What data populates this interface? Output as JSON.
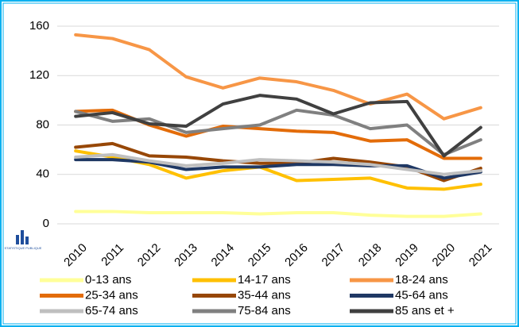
{
  "chart_data": {
    "type": "line",
    "logo_text": "STATISTIQUE PUBLIQUE",
    "x": [
      "2010",
      "2011",
      "2012",
      "2013",
      "2014",
      "2015",
      "2016",
      "2017",
      "2018",
      "2019",
      "2020",
      "2021"
    ],
    "ylim": [
      0,
      160
    ],
    "yticks": [
      0,
      40,
      80,
      120,
      160
    ],
    "grid": true,
    "series": [
      {
        "name": "0-13 ans",
        "color": "#ffff99",
        "values": [
          10,
          10,
          9,
          9,
          9,
          8,
          9,
          9,
          7,
          6,
          6,
          8
        ]
      },
      {
        "name": "14-17 ans",
        "color": "#ffc000",
        "values": [
          59,
          54,
          48,
          37,
          43,
          46,
          35,
          36,
          37,
          29,
          28,
          32
        ]
      },
      {
        "name": "18-24 ans",
        "color": "#f79646",
        "values": [
          153,
          150,
          141,
          119,
          110,
          118,
          115,
          108,
          97,
          105,
          85,
          94
        ]
      },
      {
        "name": "25-34 ans",
        "color": "#e36c09",
        "values": [
          91,
          92,
          80,
          71,
          79,
          77,
          75,
          74,
          67,
          68,
          53,
          53
        ]
      },
      {
        "name": "35-44 ans",
        "color": "#974706",
        "values": [
          62,
          65,
          55,
          54,
          51,
          49,
          49,
          53,
          50,
          46,
          35,
          45
        ]
      },
      {
        "name": "45-64 ans",
        "color": "#1f3864",
        "values": [
          52,
          52,
          50,
          44,
          46,
          46,
          48,
          48,
          47,
          47,
          37,
          42
        ]
      },
      {
        "name": "65-74 ans",
        "color": "#bfbfbf",
        "values": [
          54,
          56,
          51,
          47,
          49,
          52,
          51,
          50,
          48,
          44,
          40,
          43
        ]
      },
      {
        "name": "75-84 ans",
        "color": "#808080",
        "values": [
          91,
          83,
          85,
          74,
          77,
          80,
          92,
          88,
          77,
          80,
          56,
          68
        ]
      },
      {
        "name": "85 ans et +",
        "color": "#404040",
        "values": [
          87,
          90,
          81,
          79,
          97,
          104,
          101,
          89,
          98,
          99,
          55,
          78
        ]
      }
    ]
  }
}
